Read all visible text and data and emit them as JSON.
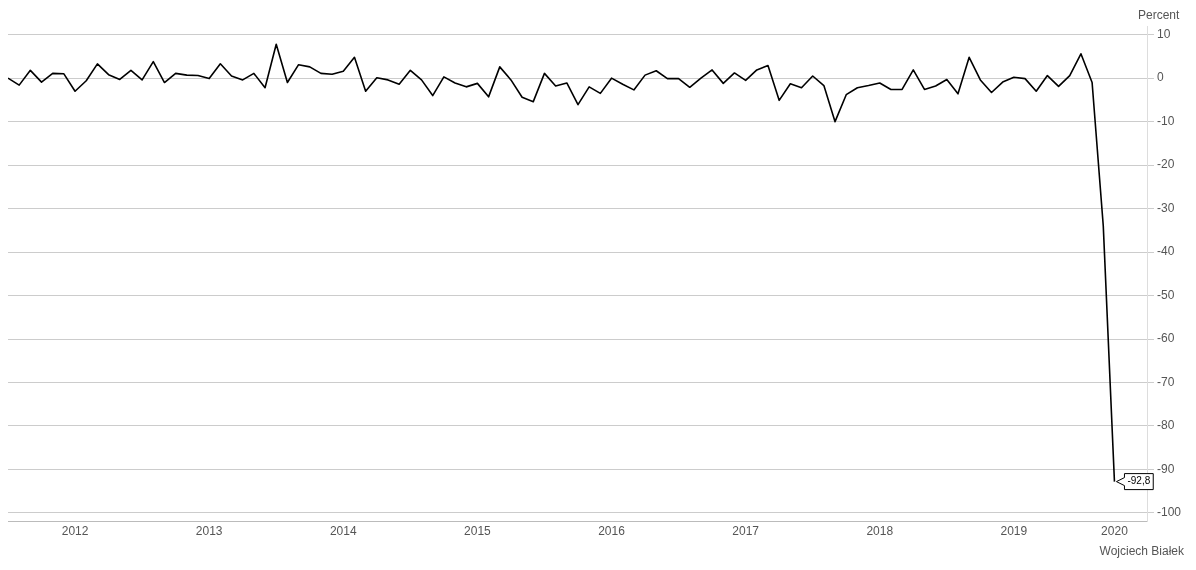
{
  "chart_data": {
    "type": "line",
    "ylabel": "Percent",
    "x": [
      "2012-01",
      "2012-02",
      "2012-03",
      "2012-04",
      "2012-05",
      "2012-06",
      "2012-07",
      "2012-08",
      "2012-09",
      "2012-10",
      "2012-11",
      "2012-12",
      "2013-01",
      "2013-02",
      "2013-03",
      "2013-04",
      "2013-05",
      "2013-06",
      "2013-07",
      "2013-08",
      "2013-09",
      "2013-10",
      "2013-11",
      "2013-12",
      "2014-01",
      "2014-02",
      "2014-03",
      "2014-04",
      "2014-05",
      "2014-06",
      "2014-07",
      "2014-08",
      "2014-09",
      "2014-10",
      "2014-11",
      "2014-12",
      "2015-01",
      "2015-02",
      "2015-03",
      "2015-04",
      "2015-05",
      "2015-06",
      "2015-07",
      "2015-08",
      "2015-09",
      "2015-10",
      "2015-11",
      "2015-12",
      "2016-01",
      "2016-02",
      "2016-03",
      "2016-04",
      "2016-05",
      "2016-06",
      "2016-07",
      "2016-08",
      "2016-09",
      "2016-10",
      "2016-11",
      "2016-12",
      "2017-01",
      "2017-02",
      "2017-03",
      "2017-04",
      "2017-05",
      "2017-06",
      "2017-07",
      "2017-08",
      "2017-09",
      "2017-10",
      "2017-11",
      "2017-12",
      "2018-01",
      "2018-02",
      "2018-03",
      "2018-04",
      "2018-05",
      "2018-06",
      "2018-07",
      "2018-08",
      "2018-09",
      "2018-10",
      "2018-11",
      "2018-12",
      "2019-01",
      "2019-02",
      "2019-03",
      "2019-04",
      "2019-05",
      "2019-06",
      "2019-07",
      "2019-08",
      "2019-09",
      "2019-10",
      "2019-11",
      "2019-12",
      "2020-01",
      "2020-02",
      "2020-03",
      "2020-04"
    ],
    "series": [
      {
        "color": "#000000",
        "values": [
          0,
          -1.6,
          1.8,
          -0.9,
          1.1,
          1.0,
          -3.0,
          -0.6,
          3.3,
          0.8,
          -0.3,
          1.8,
          -0.4,
          3.8,
          -1.0,
          1.1,
          0.7,
          0.6,
          -0.1,
          3.3,
          0.5,
          -0.4,
          1.1,
          -2.2,
          7.8,
          -1.0,
          3.1,
          2.6,
          1.1,
          0.9,
          1.6,
          4.8,
          -3.0,
          0.1,
          -0.4,
          -1.4,
          1.8,
          -0.4,
          -4.0,
          0.3,
          -1.1,
          -2.0,
          -1.2,
          -4.3,
          2.6,
          -0.4,
          -4.4,
          -5.4,
          1.1,
          -1.8,
          -1.1,
          -6.1,
          -2.0,
          -3.5,
          0,
          -1.4,
          -2.7,
          0.7,
          1.7,
          -0.1,
          -0.1,
          -2.1,
          0,
          1.9,
          -1.2,
          1.2,
          -0.5,
          1.9,
          2.9,
          -5.1,
          -1.3,
          -2.2,
          0.5,
          -1.7,
          -10.0,
          -3.8,
          -2.2,
          -1.7,
          -1.1,
          -2.6,
          -2.6,
          1.9,
          -2.6,
          -1.8,
          -0.3,
          -3.6,
          4.8,
          -0.4,
          -3.3,
          -0.9,
          0.2,
          -0.1,
          -3.0,
          0.6,
          -1.9,
          0.6,
          5.6,
          -1.0,
          -34,
          -92.8
        ]
      }
    ],
    "xlim": [
      "2012-01-01",
      "2020-07-01"
    ],
    "xticks": [
      {
        "value": "2012-07",
        "label": "2012"
      },
      {
        "value": "2013-07",
        "label": "2013"
      },
      {
        "value": "2014-07",
        "label": "2014"
      },
      {
        "value": "2015-07",
        "label": "2015"
      },
      {
        "value": "2016-07",
        "label": "2016"
      },
      {
        "value": "2017-07",
        "label": "2017"
      },
      {
        "value": "2018-07",
        "label": "2018"
      },
      {
        "value": "2019-07",
        "label": "2019"
      },
      {
        "value": "2020-04-01",
        "label": "2020"
      }
    ],
    "ylim": [
      -102,
      12
    ],
    "yticks": [
      10,
      0,
      -10,
      -20,
      -30,
      -40,
      -50,
      -60,
      -70,
      -80,
      -90,
      -100
    ],
    "grid": "y",
    "legend": false,
    "marker": "none",
    "line_style": "solid",
    "annotations": [
      {
        "text": "-92,8",
        "x": "2020-04",
        "y": -92.8
      },
      "Wojciech Białek"
    ]
  }
}
